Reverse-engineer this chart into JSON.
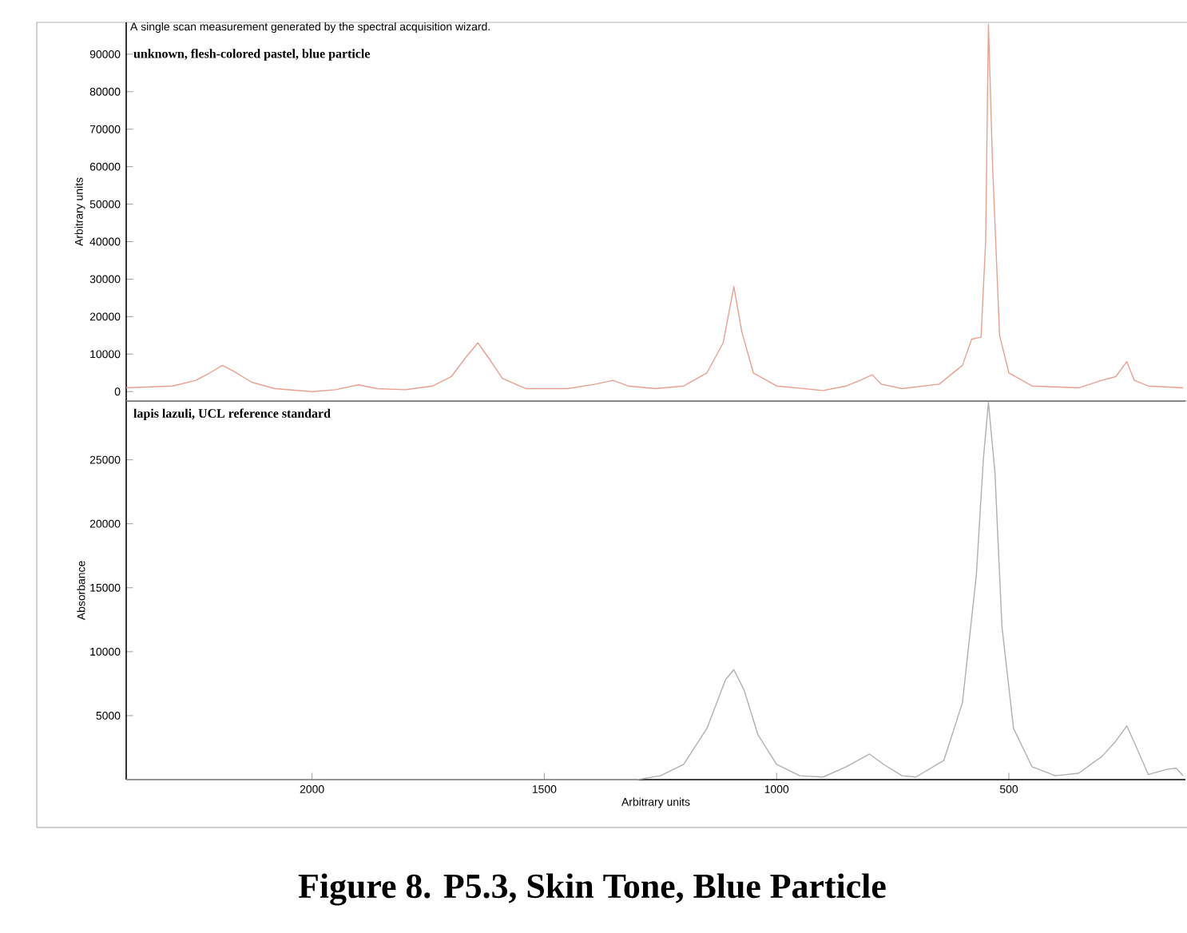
{
  "chart_data": [
    {
      "type": "line",
      "title": "unknown, flesh-colored pastel, blue particle",
      "ylabel": "Arbitrary units",
      "annotations": [
        "A single scan measurement generated by the spectral acquisition wizard."
      ],
      "xlim": [
        2400,
        120
      ],
      "ylim": [
        -2500,
        98500
      ],
      "yticks": [
        0,
        10000,
        20000,
        30000,
        40000,
        50000,
        60000,
        70000,
        80000,
        90000
      ],
      "tick_labels": "y",
      "series": [
        {
          "color": "#e8a090",
          "x": [
            2400,
            2300,
            2250,
            2220,
            2193,
            2170,
            2130,
            2080,
            2000,
            1950,
            1900,
            1860,
            1800,
            1740,
            1700,
            1670,
            1643,
            1620,
            1590,
            1540,
            1450,
            1390,
            1352,
            1320,
            1260,
            1200,
            1150,
            1115,
            1092,
            1075,
            1050,
            1000,
            900,
            850,
            820,
            794,
            775,
            730,
            650,
            600,
            580,
            560,
            550,
            544,
            535,
            520,
            500,
            450,
            350,
            300,
            270,
            246,
            230,
            200,
            125
          ],
          "values": [
            1000,
            1500,
            3000,
            5000,
            7000,
            5500,
            2500,
            800,
            0,
            500,
            1800,
            800,
            500,
            1500,
            4000,
            9000,
            13000,
            9000,
            3500,
            800,
            800,
            2000,
            3000,
            1500,
            800,
            1500,
            5000,
            13000,
            28000,
            16000,
            5000,
            1500,
            300,
            1500,
            3000,
            4500,
            2000,
            800,
            2000,
            7000,
            14000,
            14500,
            40000,
            98000,
            60000,
            15000,
            5000,
            1500,
            1000,
            3000,
            4000,
            8000,
            3000,
            1500,
            1000
          ]
        }
      ]
    },
    {
      "type": "line",
      "title": "lapis lazuli, UCL reference standard",
      "ylabel": "Absorbance",
      "xlabel": "Arbitrary units",
      "annotations": [
        "Figure 8. P5.3, Skin Tone, Blue Particle"
      ],
      "xlim": [
        2400,
        120
      ],
      "xticks": [
        2000,
        1500,
        1000,
        500
      ],
      "ylim": [
        0,
        29600
      ],
      "yticks": [
        5000,
        10000,
        15000,
        20000,
        25000
      ],
      "series": [
        {
          "color": "#b0b0b0",
          "x": [
            2400,
            1300,
            1250,
            1200,
            1150,
            1110,
            1092,
            1070,
            1040,
            1000,
            950,
            900,
            850,
            800,
            770,
            730,
            700,
            640,
            600,
            570,
            555,
            544,
            530,
            515,
            490,
            450,
            400,
            350,
            300,
            270,
            246,
            225,
            200,
            160,
            140,
            125
          ],
          "values": [
            0,
            0,
            300,
            1200,
            4000,
            7800,
            8600,
            7000,
            3500,
            1200,
            300,
            200,
            1000,
            2000,
            1200,
            300,
            200,
            1500,
            6000,
            16000,
            25000,
            29500,
            24000,
            12000,
            4000,
            1000,
            300,
            500,
            1800,
            3000,
            4200,
            2500,
            400,
            800,
            900,
            300
          ]
        }
      ]
    }
  ]
}
